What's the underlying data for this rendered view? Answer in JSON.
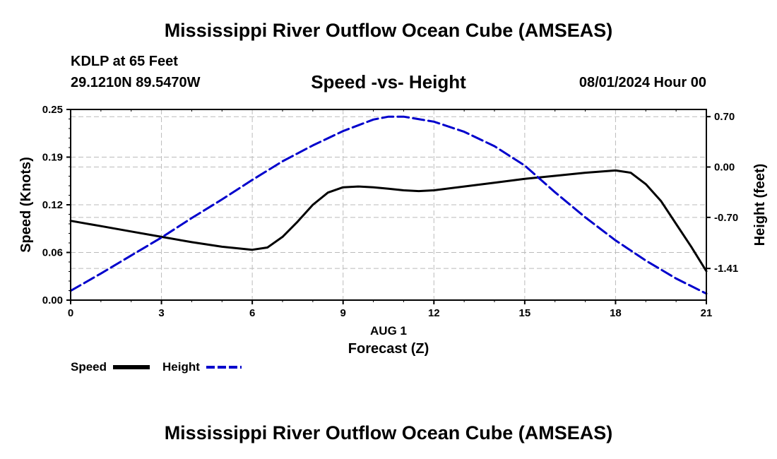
{
  "header": {
    "title": "Mississippi River Outflow Ocean Cube (AMSEAS)",
    "station": "KDLP at 65 Feet",
    "coords": "29.1210N  89.5470W",
    "subtitle": "Speed -vs- Height",
    "datetime": "08/01/2024 Hour 00"
  },
  "footer": {
    "title": "Mississippi River Outflow Ocean Cube (AMSEAS)"
  },
  "colors": {
    "speed": "#000000",
    "height": "#0000cc",
    "grid": "#bbbbbb"
  },
  "chart_data": {
    "type": "line",
    "title": "Speed -vs- Height",
    "xlabel": "Forecast (Z)",
    "xlabel_date": "AUG 1",
    "ylabel": "Speed (Knots)",
    "y2label": "Height (feet)",
    "xlim": [
      0,
      21
    ],
    "ylim": [
      0,
      0.25
    ],
    "y2lim": [
      -1.85,
      0.8
    ],
    "xticks": [
      0,
      3,
      6,
      9,
      12,
      15,
      18,
      21
    ],
    "xtick_labels": [
      "0",
      "3",
      "6",
      "9",
      "12",
      "15",
      "18",
      "21"
    ],
    "yticks": [
      0,
      0.0625,
      0.125,
      0.1875,
      0.25
    ],
    "ytick_labels": [
      "0.00",
      "0.06",
      "0.12",
      "0.19",
      "0.25"
    ],
    "y2ticks": [
      0.7,
      0,
      -0.7,
      -1.41
    ],
    "y2tick_labels": [
      "0.70",
      "0.00",
      "-0.70",
      "-1.41"
    ],
    "grid": true,
    "legend_position": "bottom-left",
    "series": [
      {
        "name": "Speed",
        "axis": "left",
        "style": "solid",
        "x": [
          0,
          1,
          2,
          3,
          4,
          5,
          6,
          6.5,
          7,
          7.5,
          8,
          8.5,
          9,
          9.5,
          10,
          10.5,
          11,
          11.5,
          12,
          13,
          14,
          15,
          16,
          17,
          18,
          18.5,
          19,
          19.5,
          20,
          20.5,
          21
        ],
        "values": [
          0.104,
          0.097,
          0.09,
          0.083,
          0.076,
          0.07,
          0.066,
          0.069,
          0.083,
          0.103,
          0.125,
          0.141,
          0.148,
          0.149,
          0.148,
          0.146,
          0.144,
          0.143,
          0.144,
          0.149,
          0.154,
          0.159,
          0.163,
          0.167,
          0.17,
          0.167,
          0.152,
          0.13,
          0.1,
          0.07,
          0.038
        ]
      },
      {
        "name": "Height",
        "axis": "right",
        "style": "dashed",
        "x": [
          0,
          1,
          2,
          3,
          4,
          5,
          6,
          7,
          8,
          9,
          10,
          10.5,
          11,
          12,
          13,
          14,
          15,
          16,
          17,
          18,
          19,
          20,
          21
        ],
        "values": [
          -1.72,
          -1.48,
          -1.23,
          -0.98,
          -0.71,
          -0.45,
          -0.18,
          0.08,
          0.3,
          0.5,
          0.66,
          0.7,
          0.7,
          0.63,
          0.49,
          0.29,
          0.02,
          -0.35,
          -0.7,
          -1.02,
          -1.3,
          -1.55,
          -1.76
        ]
      }
    ]
  }
}
